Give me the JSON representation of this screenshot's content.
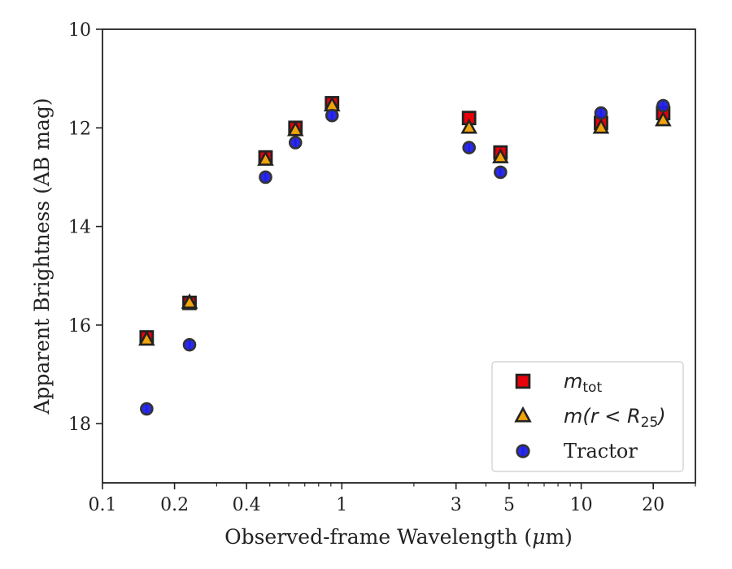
{
  "chart_data": {
    "type": "scatter",
    "xscale": "log",
    "xlim": [
      0.1,
      30
    ],
    "ylim": [
      19.2,
      10
    ],
    "y_inverted": true,
    "xlabel": "Observed-frame Wavelength (μm)",
    "xlabel_parts": [
      "Observed-frame Wavelength (",
      "μ",
      "m)"
    ],
    "ylabel": "Apparent Brightness (AB mag)",
    "x_ticks": [
      {
        "value": 0.1,
        "label": "0.1"
      },
      {
        "value": 0.2,
        "label": "0.2"
      },
      {
        "value": 0.4,
        "label": "0.4"
      },
      {
        "value": 1,
        "label": "1"
      },
      {
        "value": 3,
        "label": "3"
      },
      {
        "value": 5,
        "label": "5"
      },
      {
        "value": 10,
        "label": "10"
      },
      {
        "value": 20,
        "label": "20"
      }
    ],
    "y_ticks": [
      {
        "value": 10,
        "label": "10"
      },
      {
        "value": 12,
        "label": "12"
      },
      {
        "value": 14,
        "label": "14"
      },
      {
        "value": 16,
        "label": "16"
      },
      {
        "value": 18,
        "label": "18"
      }
    ],
    "grid": false,
    "legend_position": "lower-right",
    "series": [
      {
        "name": "m_tot",
        "legend": {
          "base": "m",
          "sub": "tot",
          "rest": ""
        },
        "marker": "square",
        "color": "#e8000b",
        "edge": "#222222",
        "x": [
          0.153,
          0.231,
          0.48,
          0.64,
          0.91,
          3.4,
          4.6,
          12.1,
          22.0
        ],
        "y": [
          16.25,
          15.55,
          12.6,
          12.0,
          11.5,
          11.8,
          12.5,
          11.9,
          11.7
        ]
      },
      {
        "name": "m(r < R_25)",
        "legend": {
          "base": "m(r < R",
          "sub": "25",
          "rest": ")"
        },
        "marker": "triangle",
        "color": "#f0a30a",
        "edge": "#222222",
        "x": [
          0.153,
          0.231,
          0.48,
          0.64,
          0.91,
          3.4,
          4.6,
          12.1,
          22.0
        ],
        "y": [
          16.3,
          15.55,
          12.65,
          12.05,
          11.55,
          12.0,
          12.6,
          12.0,
          11.85
        ]
      },
      {
        "name": "Tractor",
        "legend": {
          "base": "Tractor",
          "sub": "",
          "rest": ""
        },
        "marker": "circle",
        "color": "#1f1fe6",
        "edge": "#333333",
        "x": [
          0.153,
          0.231,
          0.48,
          0.64,
          0.91,
          3.4,
          4.6,
          12.1,
          22.0
        ],
        "y": [
          17.7,
          16.4,
          13.0,
          12.3,
          11.75,
          12.4,
          12.9,
          11.7,
          11.55
        ]
      }
    ]
  }
}
